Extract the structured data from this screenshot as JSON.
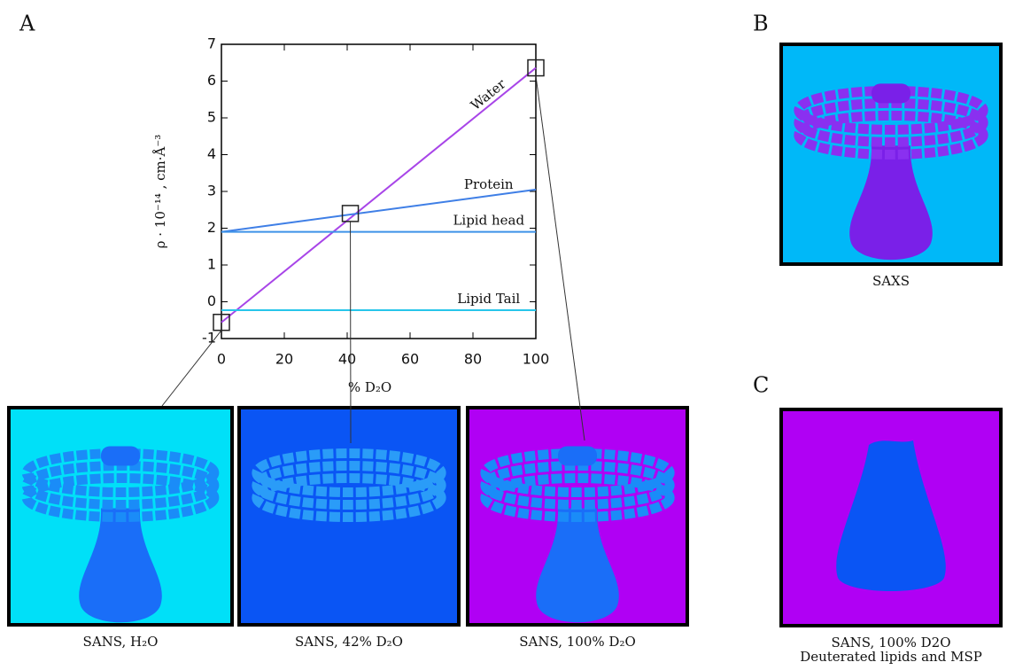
{
  "chart_data": {
    "type": "line",
    "x": [
      0,
      100
    ],
    "series": [
      {
        "name": "Water",
        "color": "#a845e8",
        "values": [
          -0.56,
          6.36
        ]
      },
      {
        "name": "Protein",
        "color": "#3f7fe6",
        "values": [
          1.9,
          3.05
        ]
      },
      {
        "name": "Lipid head",
        "color": "#3d92e8",
        "values": [
          1.9,
          1.9
        ]
      },
      {
        "name": "Lipid Tail",
        "color": "#27c6ea",
        "values": [
          -0.23,
          -0.23
        ]
      }
    ],
    "highlights": {
      "x": [
        0,
        41,
        100
      ],
      "y": [
        -0.56,
        2.4,
        6.36
      ]
    },
    "xlim": [
      0,
      100
    ],
    "xticks": [
      0,
      20,
      40,
      60,
      80,
      100
    ],
    "ylim": [
      -1,
      7
    ],
    "yticks": [
      -1,
      0,
      1,
      2,
      3,
      4,
      5,
      6,
      7
    ],
    "xlabel": "% D₂O",
    "ylabel": "ρ · 10⁻¹⁴ , cm·Å⁻³"
  },
  "panel_labels": [
    "A",
    "B",
    "C"
  ],
  "images": [
    {
      "caption": [
        "SANS, H₂O"
      ]
    },
    {
      "caption": [
        "SANS, 42% D₂O"
      ]
    },
    {
      "caption": [
        "SANS, 100% D₂O"
      ]
    },
    {
      "caption": [
        "SAXS"
      ]
    },
    {
      "caption": [
        "SANS, 100% D2O",
        "Deuterated lipids and MSP"
      ]
    }
  ]
}
